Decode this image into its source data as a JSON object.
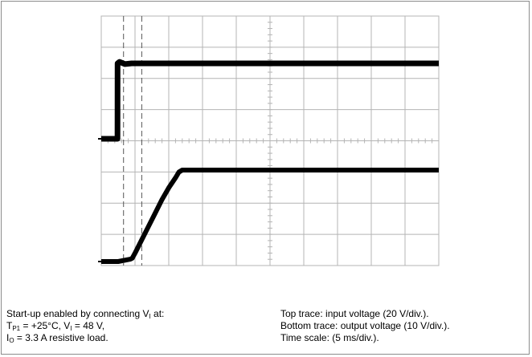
{
  "chart_data": {
    "type": "line",
    "xlim": [
      0,
      50
    ],
    "grid": true,
    "divisions": {
      "x": 10,
      "y": 8
    },
    "cursors_x_ms": [
      3.3,
      6.0
    ],
    "series": [
      {
        "name": "Top trace: input voltage (20 V/div.)",
        "x": [
          0,
          2.4,
          2.42,
          2.7,
          3.5,
          4.5,
          50
        ],
        "y": [
          0,
          0,
          50,
          51,
          49.5,
          50,
          50
        ]
      },
      {
        "name": "Bottom trace: output voltage (10 V/div.)",
        "x": [
          0,
          2.5,
          4.3,
          4.6,
          5.0,
          6.0,
          7.0,
          8.0,
          9.0,
          10.0,
          11.0,
          11.5,
          12.0,
          50
        ],
        "y": [
          0,
          0,
          0.7,
          1.0,
          2.5,
          6.5,
          10.5,
          14.5,
          18.5,
          22,
          25,
          26.7,
          27.3,
          27.3
        ]
      }
    ],
    "colors": {
      "trace": "#000000",
      "grid": "#b4b4b4",
      "cursor": "#555555"
    }
  },
  "caption": {
    "left": {
      "line1_text": "Start-up enabled by connecting V",
      "line1_sub": "I",
      "line1_tail": " at:",
      "line2_a": "T",
      "line2_sub_a": "P1",
      "line2_b": " = +25°C, V",
      "line2_sub_b": "I",
      "line2_c": " = 48 V,",
      "line3_a": "I",
      "line3_sub": "O",
      "line3_b": " = 3.3 A resistive load."
    },
    "right": {
      "line1": "Top trace: input voltage (20 V/div.).",
      "line2": "Bottom trace: output voltage (10 V/div.).",
      "line3": "Time scale: (5 ms/div.)."
    }
  }
}
